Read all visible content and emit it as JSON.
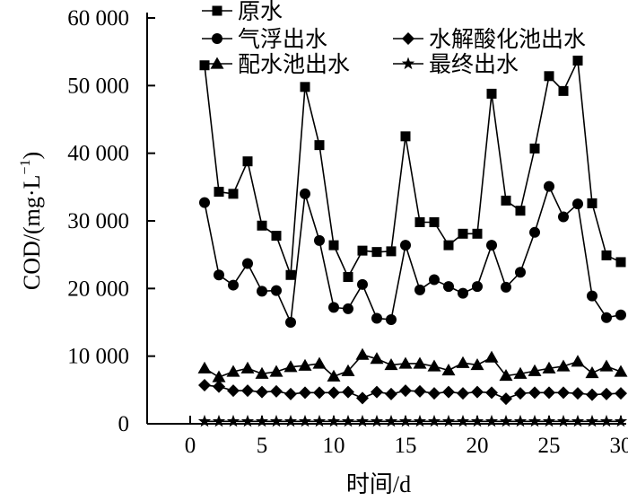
{
  "chart_data": {
    "type": "line",
    "title": "",
    "xlabel": "时间/d",
    "ylabel": "COD/(mg·L",
    "ylabel_sup": "−1",
    "ylabel_close": ")",
    "xlim": [
      -3,
      30.5
    ],
    "ylim": [
      0,
      60000
    ],
    "xticks": [
      0,
      5,
      10,
      15,
      20,
      25,
      30
    ],
    "xtick_labels": [
      "0",
      "5",
      "10",
      "15",
      "20",
      "25",
      "30"
    ],
    "yticks": [
      0,
      10000,
      20000,
      30000,
      40000,
      50000,
      60000
    ],
    "ytick_labels": [
      "0",
      "10 000",
      "20 000",
      "30 000",
      "40 000",
      "50 000",
      "60 000"
    ],
    "grid": false,
    "legend_position": "top-center",
    "x": [
      1,
      2,
      3,
      4,
      5,
      6,
      7,
      8,
      9,
      10,
      11,
      12,
      13,
      14,
      15,
      16,
      17,
      18,
      19,
      20,
      21,
      22,
      23,
      24,
      25,
      26,
      27,
      28,
      29,
      30
    ],
    "series": [
      {
        "name": "原水",
        "marker": "square",
        "values": [
          53000,
          34300,
          34000,
          38800,
          29300,
          27800,
          22000,
          49800,
          41200,
          26400,
          21700,
          25600,
          25400,
          25500,
          42500,
          29800,
          29800,
          26400,
          28100,
          28100,
          48800,
          33000,
          31500,
          40700,
          51400,
          49200,
          53700,
          32600,
          24900,
          23900
        ]
      },
      {
        "name": "气浮出水",
        "marker": "circle",
        "values": [
          32700,
          22000,
          20500,
          23700,
          19600,
          19700,
          15000,
          34000,
          27100,
          17200,
          17000,
          20600,
          15600,
          15400,
          26400,
          19800,
          21300,
          20300,
          19300,
          20300,
          26400,
          20200,
          22400,
          28300,
          35100,
          30600,
          32500,
          18900,
          15700,
          16100
        ]
      },
      {
        "name": "水解酸化池出水",
        "marker": "diamond",
        "values": [
          5700,
          5500,
          4900,
          4900,
          4700,
          4800,
          4400,
          4600,
          4600,
          4600,
          4700,
          3800,
          4700,
          4400,
          4900,
          4800,
          4500,
          4700,
          4500,
          4700,
          4600,
          3700,
          4500,
          4600,
          4600,
          4600,
          4500,
          4300,
          4400,
          4500
        ]
      },
      {
        "name": "配水池出水",
        "marker": "triangle",
        "values": [
          8200,
          6900,
          7700,
          8200,
          7400,
          7700,
          8400,
          8600,
          8900,
          7000,
          7800,
          10200,
          9600,
          8700,
          8900,
          8900,
          8500,
          7900,
          9000,
          8700,
          9800,
          7100,
          7400,
          7800,
          8200,
          8500,
          9200,
          7500,
          8500,
          7700
        ]
      },
      {
        "name": "最终出水",
        "marker": "star",
        "values": [
          350,
          350,
          350,
          350,
          350,
          350,
          350,
          350,
          350,
          350,
          350,
          350,
          350,
          350,
          350,
          350,
          350,
          350,
          350,
          350,
          350,
          350,
          350,
          350,
          350,
          350,
          350,
          350,
          350,
          350
        ]
      }
    ]
  }
}
